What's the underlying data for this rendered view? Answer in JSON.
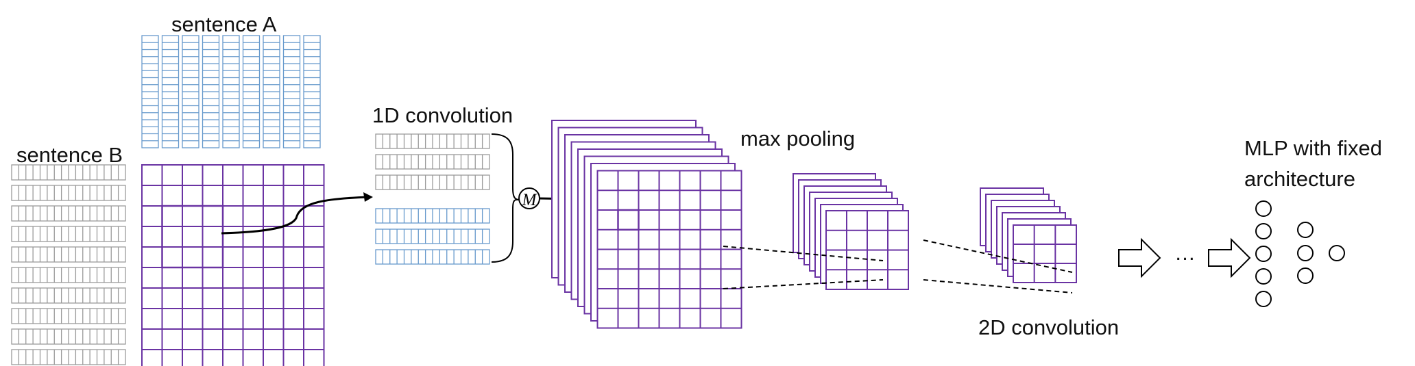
{
  "labels": {
    "sentence_a": "sentence A",
    "sentence_b": "sentence B",
    "conv1d": "1D  convolution",
    "max_pooling": "max pooling",
    "conv2d": "2D  convolution",
    "mlp_line1": "MLP with fixed",
    "mlp_line2": "architecture",
    "ellipsis": "…",
    "m_symbol": "M"
  },
  "colors": {
    "purple": "#6a33a3",
    "purple_fill": "#cfbde2",
    "purple_light_fill": "#e6dcef",
    "blue": "#6699cc",
    "gray": "#9a9a9a",
    "black": "#000000"
  }
}
